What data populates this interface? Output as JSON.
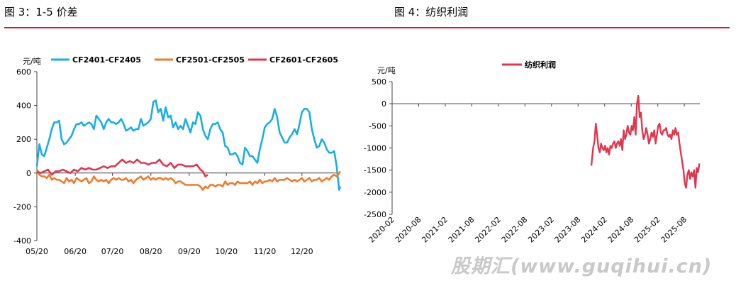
{
  "header": {
    "fig3_title": "图 3：1-5 价差",
    "fig4_title": "图 4：纺织利润"
  },
  "colors": {
    "rule": "#e8101e"
  },
  "watermark": "股期汇(www.guqihui.cn)",
  "chart_data": [
    {
      "type": "line",
      "ylabel": "元/吨",
      "ylim": [
        -400,
        600
      ],
      "yticks": [
        600,
        400,
        200,
        0,
        -200,
        -400
      ],
      "xlim": [
        0,
        245
      ],
      "xtick_positions": [
        0,
        31,
        61,
        92,
        123,
        153,
        184,
        214
      ],
      "xtick_labels": [
        "05/20",
        "06/20",
        "07/20",
        "08/20",
        "09/20",
        "10/20",
        "11/20",
        "12/20"
      ],
      "legend_position": "top",
      "series": [
        {
          "name": "CF2401-CF2405",
          "color": "#1aaee5",
          "x": [
            0,
            2,
            4,
            6,
            8,
            10,
            12,
            14,
            16,
            18,
            20,
            22,
            24,
            26,
            28,
            30,
            32,
            34,
            36,
            38,
            40,
            42,
            44,
            46,
            48,
            50,
            52,
            54,
            56,
            58,
            60,
            62,
            64,
            66,
            68,
            70,
            72,
            74,
            76,
            78,
            80,
            82,
            84,
            86,
            88,
            90,
            92,
            94,
            96,
            98,
            100,
            102,
            104,
            106,
            108,
            110,
            112,
            114,
            116,
            118,
            120,
            122,
            124,
            126,
            128,
            130,
            132,
            134,
            136,
            138,
            140,
            142,
            144,
            146,
            148,
            150,
            152,
            154,
            156,
            158,
            160,
            162,
            164,
            166,
            168,
            170,
            172,
            174,
            176,
            178,
            180,
            182,
            184,
            186,
            188,
            190,
            192,
            194,
            196,
            198,
            200,
            202,
            204,
            206,
            208,
            210,
            212,
            214,
            216,
            218,
            220,
            222,
            224,
            226,
            228,
            230,
            232,
            234,
            236,
            238,
            240,
            242,
            244,
            245
          ],
          "values": [
            40,
            170,
            110,
            100,
            150,
            200,
            260,
            300,
            300,
            310,
            200,
            170,
            180,
            200,
            220,
            260,
            290,
            290,
            300,
            280,
            290,
            300,
            290,
            260,
            340,
            320,
            300,
            260,
            300,
            320,
            300,
            300,
            290,
            300,
            320,
            290,
            250,
            260,
            270,
            250,
            260,
            260,
            320,
            280,
            290,
            300,
            320,
            420,
            430,
            360,
            380,
            310,
            390,
            330,
            340,
            270,
            300,
            260,
            280,
            260,
            320,
            280,
            240,
            300,
            290,
            360,
            340,
            260,
            220,
            200,
            260,
            290,
            290,
            300,
            260,
            240,
            160,
            150,
            110,
            110,
            120,
            100,
            60,
            50,
            150,
            130,
            100,
            100,
            80,
            60,
            140,
            200,
            270,
            290,
            300,
            320,
            380,
            330,
            240,
            210,
            180,
            180,
            210,
            230,
            260,
            230,
            290,
            360,
            380,
            380,
            360,
            260,
            200,
            150,
            160,
            200,
            180,
            140,
            120,
            120,
            130,
            40,
            -100,
            -80
          ],
          "values_comment": "approximate"
        },
        {
          "name": "CF2501-CF2505",
          "color": "#ee7b2d",
          "x": [
            0,
            2,
            4,
            6,
            8,
            10,
            12,
            14,
            16,
            18,
            20,
            22,
            24,
            26,
            28,
            30,
            32,
            34,
            36,
            38,
            40,
            42,
            44,
            46,
            48,
            50,
            52,
            54,
            56,
            58,
            60,
            62,
            64,
            66,
            68,
            70,
            72,
            74,
            76,
            78,
            80,
            82,
            84,
            86,
            88,
            90,
            92,
            94,
            96,
            98,
            100,
            102,
            104,
            106,
            108,
            110,
            112,
            114,
            116,
            118,
            120,
            122,
            124,
            126,
            128,
            130,
            132,
            134,
            136,
            138,
            140,
            142,
            144,
            146,
            148,
            150,
            152,
            154,
            156,
            158,
            160,
            162,
            164,
            166,
            168,
            170,
            172,
            174,
            176,
            178,
            180,
            182,
            184,
            186,
            188,
            190,
            192,
            194,
            196,
            198,
            200,
            202,
            204,
            206,
            208,
            210,
            212,
            214,
            216,
            218,
            220,
            222,
            224,
            226,
            228,
            230,
            232,
            234,
            236,
            238,
            240,
            242,
            244,
            245
          ],
          "values": [
            20,
            -10,
            -20,
            -20,
            -30,
            -10,
            -40,
            -30,
            -40,
            -40,
            -50,
            -60,
            -30,
            -50,
            -40,
            -60,
            -30,
            -40,
            -50,
            -40,
            -30,
            -60,
            -50,
            -20,
            -40,
            -50,
            -40,
            -50,
            -40,
            -60,
            -40,
            -30,
            -40,
            -30,
            -40,
            -40,
            -30,
            -50,
            -40,
            -60,
            -40,
            -30,
            -20,
            -40,
            -30,
            -20,
            -40,
            -30,
            -40,
            -30,
            -30,
            -40,
            -30,
            -40,
            -30,
            -40,
            -60,
            -50,
            -50,
            -60,
            -70,
            -70,
            -70,
            -70,
            -70,
            -70,
            -80,
            -100,
            -80,
            -90,
            -70,
            -70,
            -80,
            -70,
            -70,
            -80,
            -50,
            -70,
            -60,
            -60,
            -70,
            -50,
            -60,
            -60,
            -60,
            -60,
            -50,
            -70,
            -50,
            -60,
            -40,
            -60,
            -50,
            -50,
            -40,
            -50,
            -30,
            -50,
            -40,
            -40,
            -40,
            -30,
            -40,
            -50,
            -40,
            -50,
            -40,
            -30,
            -50,
            -40,
            -30,
            -50,
            -40,
            -40,
            -30,
            -50,
            -40,
            -30,
            -40,
            -20,
            -10,
            -20,
            0,
            10
          ],
          "values_comment": "approximate"
        },
        {
          "name": "CF2601-CF2605",
          "color": "#e0374f",
          "x": [
            0,
            3,
            6,
            9,
            12,
            15,
            18,
            21,
            24,
            27,
            30,
            33,
            36,
            39,
            42,
            45,
            48,
            51,
            54,
            57,
            60,
            63,
            66,
            69,
            72,
            75,
            78,
            81,
            84,
            87,
            90,
            93,
            96,
            99,
            102,
            105,
            108,
            111,
            114,
            117,
            120,
            123,
            126,
            129,
            132,
            134,
            136,
            138
          ],
          "values": [
            10,
            0,
            10,
            20,
            -10,
            10,
            10,
            20,
            10,
            0,
            20,
            10,
            30,
            20,
            30,
            20,
            20,
            30,
            40,
            30,
            40,
            40,
            60,
            80,
            60,
            70,
            60,
            80,
            60,
            60,
            50,
            60,
            60,
            80,
            50,
            40,
            60,
            30,
            50,
            50,
            40,
            40,
            40,
            50,
            20,
            10,
            -20,
            -10
          ],
          "values_comment": "approximate"
        }
      ]
    },
    {
      "type": "line",
      "ylabel": "元/吨",
      "ylim": [
        -2500,
        500
      ],
      "yticks": [
        500,
        0,
        -500,
        -1000,
        -1500,
        -2000,
        -2500
      ],
      "xlim": [
        0,
        69.5
      ],
      "xtick_positions": [
        0,
        6,
        12,
        18,
        24,
        30,
        36,
        42,
        48,
        54,
        60,
        66
      ],
      "xtick_labels": [
        "2020-02",
        "2020-08",
        "2021-02",
        "2021-08",
        "2022-02",
        "2022-08",
        "2023-02",
        "2023-08",
        "2024-02",
        "2024-08",
        "2025-02",
        "2025-08"
      ],
      "legend_position": "top",
      "series": [
        {
          "name": "纺织利润",
          "color": "#e0374f",
          "x": [
            45,
            45.4,
            45.7,
            46,
            46.3,
            46.6,
            46.9,
            47.2,
            47.5,
            47.8,
            48.1,
            48.4,
            48.7,
            49,
            49.3,
            49.6,
            49.9,
            50.2,
            50.5,
            50.8,
            51.1,
            51.4,
            51.7,
            52,
            52.3,
            52.6,
            52.9,
            53.2,
            53.5,
            53.8,
            54.1,
            54.4,
            54.7,
            55,
            55.3,
            55.6,
            55.9,
            56.2,
            56.5,
            56.8,
            57.1,
            57.4,
            57.7,
            58,
            58.3,
            58.6,
            58.9,
            59.2,
            59.5,
            59.8,
            60.1,
            60.4,
            60.7,
            61,
            61.3,
            61.6,
            61.9,
            62.2,
            62.5,
            62.8,
            63.1,
            63.4,
            63.7,
            64,
            64.3,
            64.6,
            64.9,
            65.2,
            65.5,
            65.8,
            66.1,
            66.4,
            66.7,
            67,
            67.3,
            67.6,
            67.9,
            68.2,
            68.5,
            68.8,
            69.1,
            69.4
          ],
          "values": [
            -1400,
            -1000,
            -850,
            -450,
            -700,
            -1000,
            -1100,
            -900,
            -1000,
            -1050,
            -950,
            -1100,
            -1000,
            -1150,
            -950,
            -1000,
            -900,
            -850,
            -1000,
            -900,
            -850,
            -950,
            -800,
            -1050,
            -600,
            -800,
            -700,
            -500,
            -650,
            -700,
            -500,
            -600,
            -300,
            -700,
            0,
            180,
            -300,
            -200,
            -600,
            -800,
            -700,
            -550,
            -700,
            -900,
            -800,
            -650,
            -750,
            -600,
            -900,
            -700,
            -500,
            -450,
            -650,
            -700,
            -600,
            -600,
            -550,
            -700,
            -750,
            -700,
            -800,
            -600,
            -700,
            -550,
            -700,
            -650,
            -900,
            -1100,
            -1300,
            -1500,
            -1800,
            -1900,
            -1600,
            -1500,
            -1700,
            -1550,
            -1650,
            -1500,
            -1900,
            -1450,
            -1550,
            -1350
          ],
          "values_comment": "approximate"
        }
      ]
    }
  ]
}
